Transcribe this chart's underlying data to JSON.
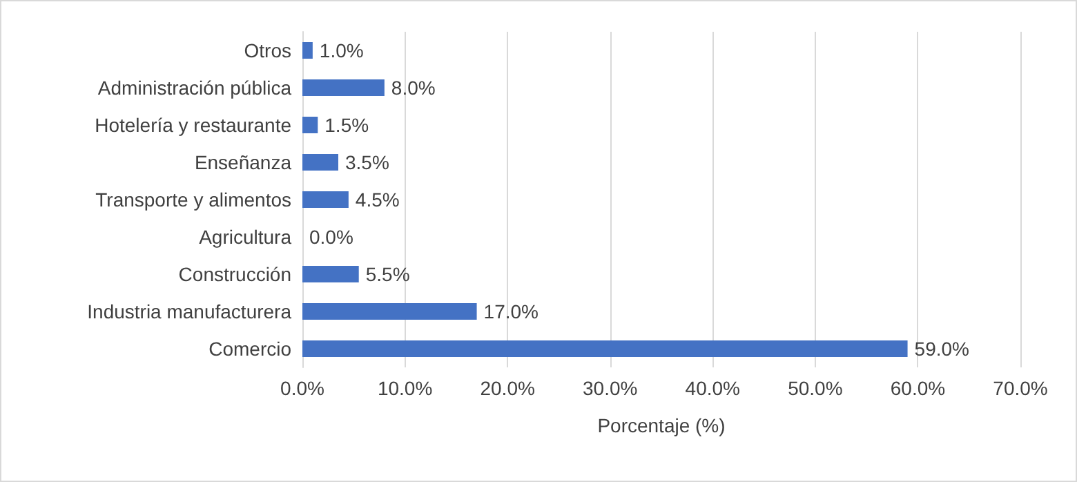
{
  "chart_data": {
    "type": "bar",
    "orientation": "horizontal",
    "xlabel": "Porcentaje (%)",
    "categories": [
      "Otros",
      "Administración pública",
      "Hotelería y restaurante",
      "Enseñanza",
      "Transporte y alimentos",
      "Agricultura",
      "Construcción",
      "Industria manufacturera",
      "Comercio"
    ],
    "values": [
      1.0,
      8.0,
      1.5,
      3.5,
      4.5,
      0.0,
      5.5,
      17.0,
      59.0
    ],
    "value_labels": [
      "1.0%",
      "8.0%",
      "1.5%",
      "3.5%",
      "4.5%",
      "0.0%",
      "5.5%",
      "17.0%",
      "59.0%"
    ],
    "color": "#4472c4",
    "xlim": [
      0,
      70
    ],
    "xticks": [
      {
        "value": 0,
        "label": "0.0%"
      },
      {
        "value": 10,
        "label": "10.0%"
      },
      {
        "value": 20,
        "label": "20.0%"
      },
      {
        "value": 30,
        "label": "30.0%"
      },
      {
        "value": 40,
        "label": "40.0%"
      },
      {
        "value": 50,
        "label": "50.0%"
      },
      {
        "value": 60,
        "label": "60.0%"
      },
      {
        "value": 70,
        "label": "70.0%"
      }
    ],
    "grid": "x"
  }
}
